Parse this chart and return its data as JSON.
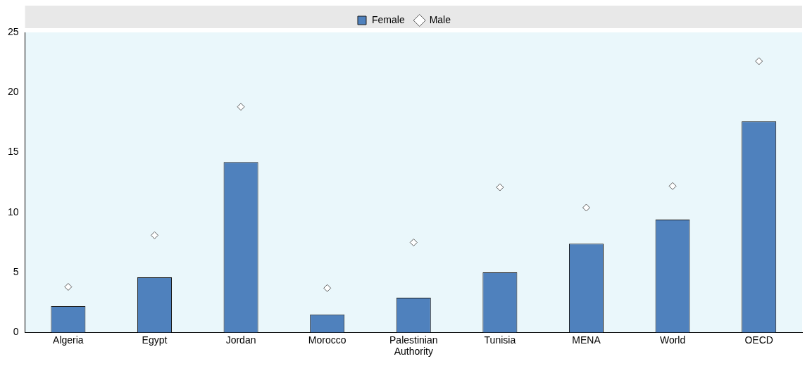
{
  "chart_data": {
    "type": "bar",
    "categories": [
      "Algeria",
      "Egypt",
      "Jordan",
      "Morocco",
      "Palestinian Authority",
      "Tunisia",
      "MENA",
      "World",
      "OECD"
    ],
    "series": [
      {
        "name": "Female",
        "color": "#4f81bd",
        "values": [
          2.2,
          4.6,
          14.2,
          1.5,
          2.9,
          5.0,
          7.4,
          9.4,
          17.6
        ]
      },
      {
        "name": "Male",
        "type": "scatter",
        "color": "#595959",
        "marker": "diamond",
        "values": [
          3.8,
          8.1,
          18.8,
          3.7,
          7.5,
          12.1,
          10.4,
          12.2,
          22.6
        ]
      }
    ],
    "ylim": [
      0,
      25
    ],
    "yticks": [
      0,
      5,
      10,
      15,
      20,
      25
    ],
    "legend": "top",
    "grid": false
  }
}
